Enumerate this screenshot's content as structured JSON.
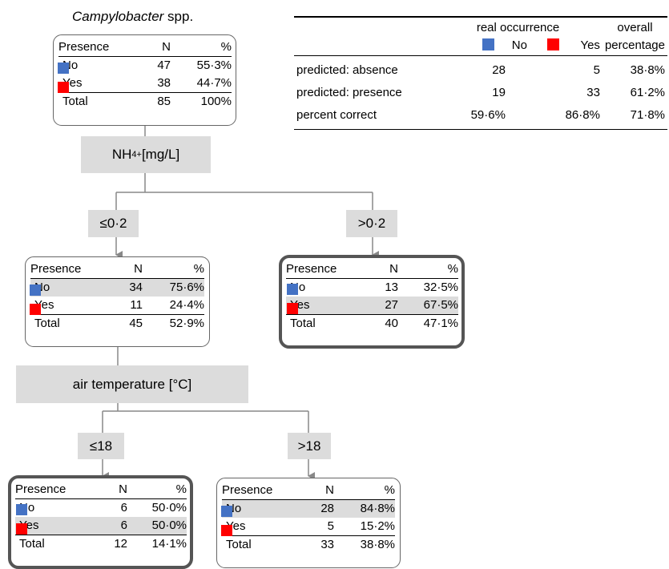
{
  "title": {
    "italic": "Campylobacter",
    "rest": " spp."
  },
  "headers": {
    "presence": "Presence",
    "n": "N",
    "pct": "%"
  },
  "labels": {
    "no": "No",
    "yes": "Yes",
    "total": "Total"
  },
  "colors": {
    "no": "#4472c4",
    "yes": "#ff0000",
    "box_fill": "#dcdcdc"
  },
  "nodes": {
    "root": {
      "no_n": "47",
      "no_pct": "55·3%",
      "yes_n": "38",
      "yes_pct": "44·7%",
      "total_n": "85",
      "total_pct": "100%"
    },
    "left": {
      "no_n": "34",
      "no_pct": "75·6%",
      "yes_n": "11",
      "yes_pct": "24·4%",
      "total_n": "45",
      "total_pct": "52·9%"
    },
    "right": {
      "no_n": "13",
      "no_pct": "32·5%",
      "yes_n": "27",
      "yes_pct": "67·5%",
      "total_n": "40",
      "total_pct": "47·1%"
    },
    "left_left": {
      "no_n": "6",
      "no_pct": "50·0%",
      "yes_n": "6",
      "yes_pct": "50·0%",
      "total_n": "12",
      "total_pct": "14·1%"
    },
    "left_right": {
      "no_n": "28",
      "no_pct": "84·8%",
      "yes_n": "5",
      "yes_pct": "15·2%",
      "total_n": "33",
      "total_pct": "38·8%"
    }
  },
  "splits": {
    "nh4": {
      "text": "NH",
      "sub": "4",
      "sup": "+",
      "unit": " [mg/L]"
    },
    "air": "air temperature [°C]"
  },
  "branches": {
    "b1": "≤0·2",
    "b2": ">0·2",
    "b3": "≤18",
    "b4": ">18"
  },
  "summary": {
    "real_occurrence": "real occurrence",
    "overall": "overall",
    "percentage": "percentage",
    "no": "No",
    "yes": "Yes",
    "rows": [
      {
        "label": "predicted: absence",
        "no": "28",
        "yes": "5",
        "overall": "38·8%"
      },
      {
        "label": "predicted: presence",
        "no": "19",
        "yes": "33",
        "overall": "61·2%"
      },
      {
        "label": "percent correct",
        "no": "59·6%",
        "yes": "86·8%",
        "overall": "71·8%"
      }
    ]
  }
}
